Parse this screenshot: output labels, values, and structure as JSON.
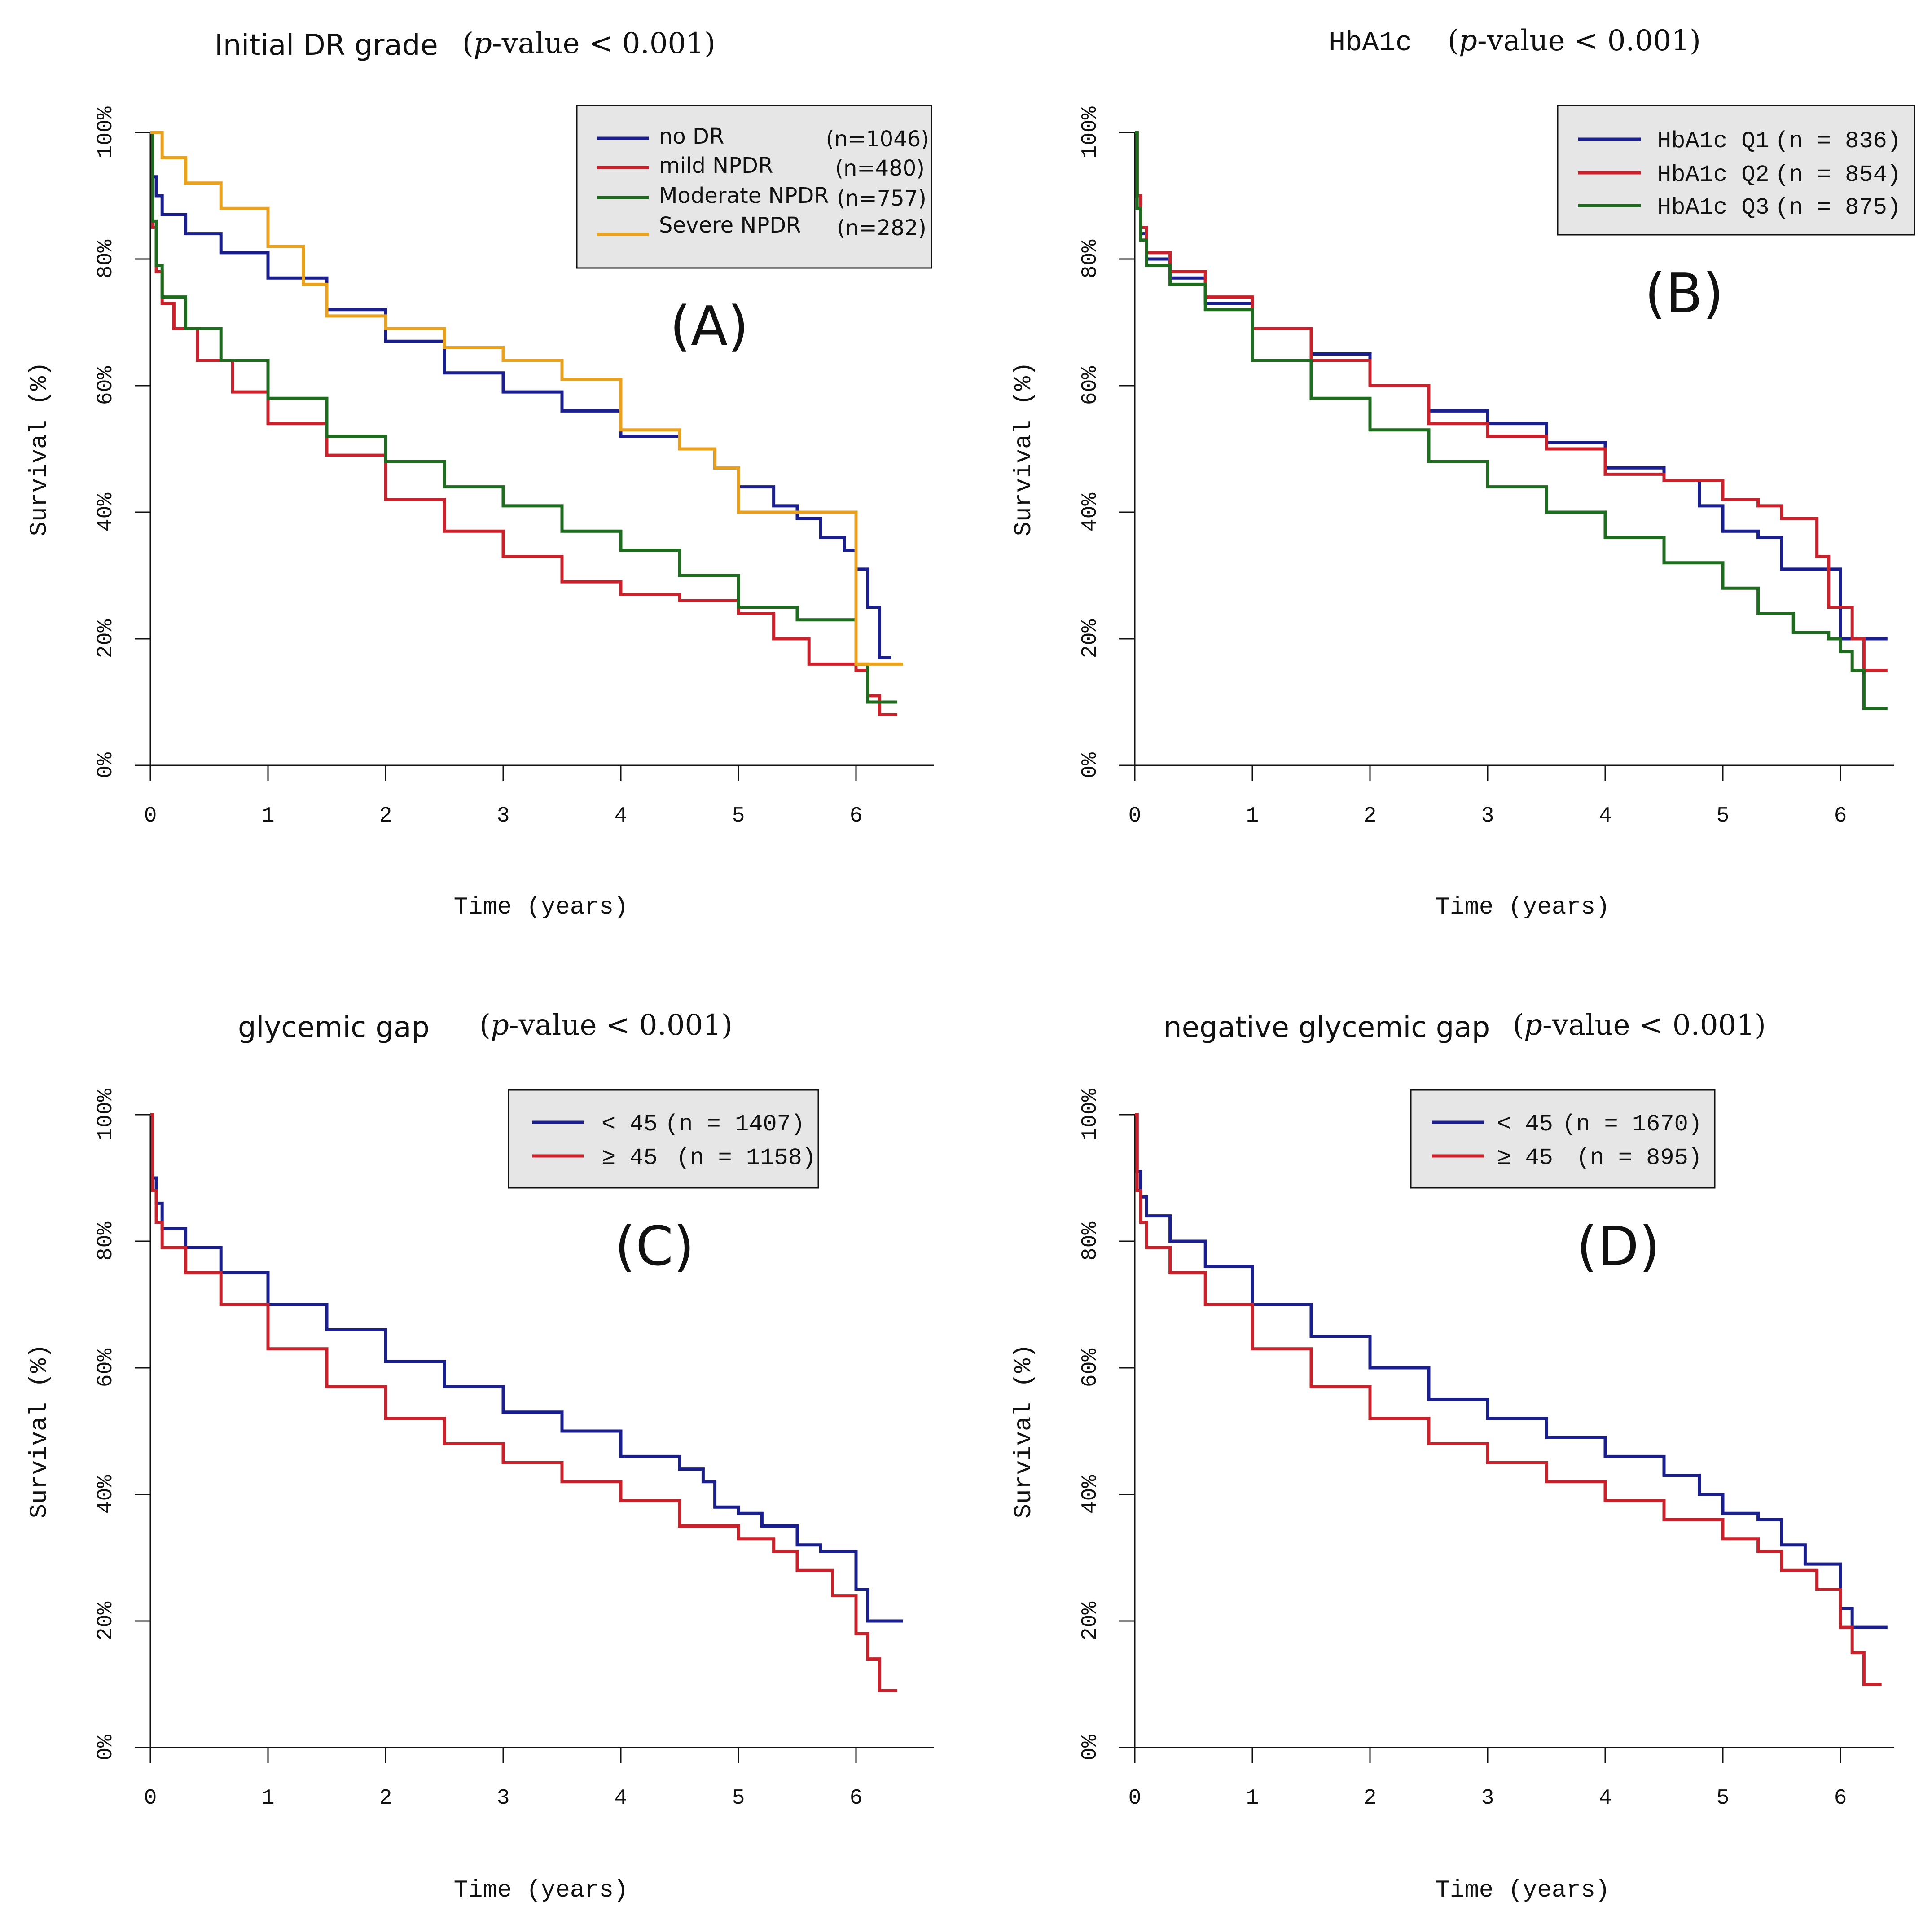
{
  "colors": {
    "navy": "#1a1f8c",
    "red": "#c8232c",
    "green": "#1f6b1f",
    "gold": "#e8a21f"
  },
  "chart_data": [
    {
      "id": "A",
      "type": "line",
      "panel_letter": "(A)",
      "title": "Initial DR grade",
      "pvalue": {
        "open": "(",
        "p": "p",
        "rest": "-value",
        "cmp": " < 0.001)"
      },
      "xlabel": "Time (years)",
      "ylabel": "Survival (%)",
      "xlim": [
        0,
        6.6
      ],
      "ylim": [
        0,
        100
      ],
      "xticks": [
        "0",
        "1",
        "2",
        "3",
        "4",
        "5",
        "6"
      ],
      "yticks": [
        "0%",
        "20%",
        "40%",
        "60%",
        "80%",
        "100%"
      ],
      "legend_style": "sans",
      "legend_position": "top-right",
      "series": [
        {
          "name": "no DR",
          "n": "(n=1046)",
          "color": "#1a1f8c",
          "x": [
            0,
            0.02,
            0.05,
            0.1,
            0.3,
            0.6,
            1.0,
            1.5,
            2.0,
            2.5,
            3.0,
            3.5,
            4.0,
            4.5,
            4.8,
            5.0,
            5.3,
            5.5,
            5.7,
            5.9,
            6.0,
            6.1,
            6.2,
            6.3
          ],
          "y": [
            100,
            93,
            90,
            87,
            84,
            81,
            77,
            72,
            67,
            62,
            59,
            56,
            52,
            50,
            47,
            44,
            41,
            39,
            36,
            34,
            31,
            25,
            17,
            17
          ]
        },
        {
          "name": "mild NPDR",
          "n": "(n=480)",
          "color": "#c8232c",
          "x": [
            0,
            0.02,
            0.05,
            0.1,
            0.2,
            0.4,
            0.7,
            1.0,
            1.5,
            2.0,
            2.5,
            3.0,
            3.5,
            4.0,
            4.5,
            5.0,
            5.3,
            5.6,
            5.9,
            6.0,
            6.1,
            6.2,
            6.35
          ],
          "y": [
            100,
            85,
            78,
            73,
            69,
            64,
            59,
            54,
            49,
            42,
            37,
            33,
            29,
            27,
            26,
            24,
            20,
            16,
            16,
            15,
            11,
            8,
            8
          ]
        },
        {
          "name": "Moderate NPDR",
          "n": "(n=757)",
          "color": "#1f6b1f",
          "x": [
            0,
            0.02,
            0.05,
            0.1,
            0.3,
            0.6,
            1.0,
            1.5,
            2.0,
            2.5,
            3.0,
            3.5,
            4.0,
            4.5,
            5.0,
            5.5,
            5.9,
            6.0,
            6.1,
            6.2,
            6.35
          ],
          "y": [
            100,
            86,
            79,
            74,
            69,
            64,
            58,
            52,
            48,
            44,
            41,
            37,
            34,
            30,
            25,
            23,
            23,
            16,
            10,
            10,
            10
          ]
        },
        {
          "name": "Severe NPDR",
          "n": "(n=282)",
          "color": "#e8a21f",
          "x": [
            0,
            0.1,
            0.3,
            0.6,
            1.0,
            1.3,
            1.5,
            1.8,
            2.0,
            2.5,
            3.0,
            3.5,
            4.0,
            4.5,
            4.8,
            5.0,
            5.5,
            5.9,
            6.0,
            6.1,
            6.4
          ],
          "y": [
            100,
            96,
            92,
            88,
            82,
            76,
            71,
            71,
            69,
            66,
            64,
            61,
            53,
            50,
            47,
            40,
            40,
            40,
            16,
            16,
            16
          ]
        }
      ]
    },
    {
      "id": "B",
      "type": "line",
      "panel_letter": "(B)",
      "title": "HbA1c",
      "pvalue": {
        "open": "(",
        "p": "p",
        "rest": "-value",
        "cmp": " < 0.001)"
      },
      "xlabel": "Time (years)",
      "ylabel": "Survival (%)",
      "xlim": [
        0,
        6.6
      ],
      "ylim": [
        0,
        100
      ],
      "xticks": [
        "0",
        "1",
        "2",
        "3",
        "4",
        "5",
        "6"
      ],
      "yticks": [
        "0%",
        "20%",
        "40%",
        "60%",
        "80%",
        "100%"
      ],
      "legend_style": "mono",
      "legend_position": "top-right",
      "series": [
        {
          "name": "HbA1c Q1",
          "n": "(n = 836)",
          "color": "#1a1f8c",
          "x": [
            0,
            0.02,
            0.05,
            0.1,
            0.3,
            0.6,
            1.0,
            1.5,
            2.0,
            2.5,
            3.0,
            3.5,
            4.0,
            4.5,
            4.8,
            5.0,
            5.3,
            5.5,
            5.9,
            6.0,
            6.4
          ],
          "y": [
            100,
            90,
            84,
            80,
            77,
            73,
            69,
            65,
            60,
            56,
            54,
            51,
            47,
            45,
            41,
            37,
            36,
            31,
            31,
            20,
            20
          ]
        },
        {
          "name": "HbA1c Q2",
          "n": "(n = 854)",
          "color": "#c8232c",
          "x": [
            0,
            0.02,
            0.05,
            0.1,
            0.3,
            0.6,
            1.0,
            1.5,
            2.0,
            2.5,
            3.0,
            3.5,
            4.0,
            4.5,
            5.0,
            5.3,
            5.5,
            5.8,
            5.9,
            6.0,
            6.1,
            6.2,
            6.4
          ],
          "y": [
            100,
            90,
            85,
            81,
            78,
            74,
            69,
            64,
            60,
            54,
            52,
            50,
            46,
            45,
            42,
            41,
            39,
            33,
            25,
            25,
            20,
            15,
            15
          ]
        },
        {
          "name": "HbA1c Q3",
          "n": "(n = 875)",
          "color": "#1f6b1f",
          "x": [
            0,
            0.02,
            0.05,
            0.1,
            0.3,
            0.6,
            1.0,
            1.5,
            2.0,
            2.5,
            3.0,
            3.5,
            4.0,
            4.5,
            5.0,
            5.3,
            5.6,
            5.9,
            6.0,
            6.1,
            6.2,
            6.4
          ],
          "y": [
            100,
            88,
            83,
            79,
            76,
            72,
            64,
            58,
            53,
            48,
            44,
            40,
            36,
            32,
            28,
            24,
            21,
            20,
            18,
            15,
            9,
            9
          ]
        }
      ]
    },
    {
      "id": "C",
      "type": "line",
      "panel_letter": "(C)",
      "title": "glycemic gap",
      "pvalue": {
        "open": "(",
        "p": "p",
        "rest": "-value",
        "cmp": " < 0.001)"
      },
      "xlabel": "Time (years)",
      "ylabel": "Survival (%)",
      "xlim": [
        0,
        6.6
      ],
      "ylim": [
        0,
        100
      ],
      "xticks": [
        "0",
        "1",
        "2",
        "3",
        "4",
        "5",
        "6"
      ],
      "yticks": [
        "0%",
        "20%",
        "40%",
        "60%",
        "80%",
        "100%"
      ],
      "legend_style": "mono",
      "legend_position": "top-right",
      "series": [
        {
          "name": "< 45",
          "n": "(n = 1407)",
          "color": "#1a1f8c",
          "x": [
            0,
            0.02,
            0.05,
            0.1,
            0.3,
            0.6,
            1.0,
            1.5,
            2.0,
            2.5,
            3.0,
            3.5,
            4.0,
            4.5,
            4.7,
            4.8,
            5.0,
            5.2,
            5.5,
            5.7,
            5.9,
            6.0,
            6.1,
            6.4
          ],
          "y": [
            100,
            90,
            86,
            82,
            79,
            75,
            70,
            66,
            61,
            57,
            53,
            50,
            46,
            44,
            42,
            38,
            37,
            35,
            32,
            31,
            31,
            25,
            20,
            20
          ]
        },
        {
          "name": "≥ 45",
          "n": "(n = 1158)",
          "color": "#c8232c",
          "x": [
            0,
            0.02,
            0.05,
            0.1,
            0.3,
            0.6,
            1.0,
            1.5,
            2.0,
            2.5,
            3.0,
            3.5,
            4.0,
            4.5,
            5.0,
            5.3,
            5.5,
            5.8,
            5.9,
            6.0,
            6.1,
            6.2,
            6.35
          ],
          "y": [
            100,
            88,
            83,
            79,
            75,
            70,
            63,
            57,
            52,
            48,
            45,
            42,
            39,
            35,
            33,
            31,
            28,
            24,
            24,
            18,
            14,
            9,
            9
          ]
        }
      ]
    },
    {
      "id": "D",
      "type": "line",
      "panel_letter": "(D)",
      "title": "negative glycemic gap",
      "pvalue": {
        "open": "(",
        "p": "p",
        "rest": "-value",
        "cmp": " < 0.001)"
      },
      "xlabel": "Time (years)",
      "ylabel": "Survival (%)",
      "xlim": [
        0,
        6.6
      ],
      "ylim": [
        0,
        100
      ],
      "xticks": [
        "0",
        "1",
        "2",
        "3",
        "4",
        "5",
        "6"
      ],
      "yticks": [
        "0%",
        "20%",
        "40%",
        "60%",
        "80%",
        "100%"
      ],
      "legend_style": "mono",
      "legend_position": "top-right",
      "series": [
        {
          "name": "< 45",
          "n": "(n = 1670)",
          "color": "#1a1f8c",
          "x": [
            0,
            0.02,
            0.05,
            0.1,
            0.3,
            0.6,
            1.0,
            1.5,
            2.0,
            2.5,
            3.0,
            3.5,
            4.0,
            4.5,
            4.8,
            5.0,
            5.3,
            5.5,
            5.7,
            5.9,
            6.0,
            6.1,
            6.4
          ],
          "y": [
            100,
            91,
            87,
            84,
            80,
            76,
            70,
            65,
            60,
            55,
            52,
            49,
            46,
            43,
            40,
            37,
            36,
            32,
            29,
            29,
            22,
            19,
            19
          ]
        },
        {
          "name": "≥ 45",
          "n": "(n = 895)",
          "color": "#c8232c",
          "x": [
            0,
            0.02,
            0.05,
            0.1,
            0.3,
            0.6,
            1.0,
            1.5,
            2.0,
            2.5,
            3.0,
            3.5,
            4.0,
            4.5,
            5.0,
            5.3,
            5.5,
            5.8,
            5.9,
            6.0,
            6.1,
            6.2,
            6.35
          ],
          "y": [
            100,
            88,
            83,
            79,
            75,
            70,
            63,
            57,
            52,
            48,
            45,
            42,
            39,
            36,
            33,
            31,
            28,
            25,
            25,
            19,
            15,
            10,
            10
          ]
        }
      ]
    }
  ]
}
